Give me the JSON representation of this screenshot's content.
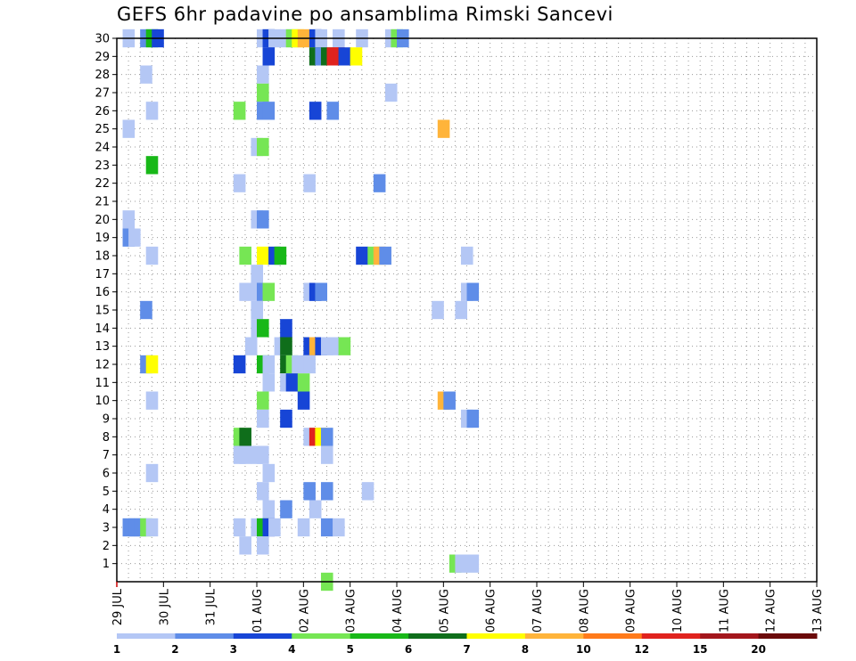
{
  "chart_data": {
    "type": "heatmap",
    "title": "GEFS 6hr padavine po ansamblima Rimski Sancevi",
    "xlabel": "",
    "ylabel": "",
    "x_tick_labels": [
      "29 JUL",
      "30 JUL",
      "31 JUL",
      "01 AUG",
      "02 AUG",
      "03 AUG",
      "04 AUG",
      "05 AUG",
      "06 AUG",
      "07 AUG",
      "08 AUG",
      "09 AUG",
      "10 AUG",
      "11 AUG",
      "12 AUG",
      "13 AUG"
    ],
    "y_tick_labels": [
      "1",
      "2",
      "3",
      "4",
      "5",
      "6",
      "7",
      "8",
      "9",
      "10",
      "11",
      "12",
      "13",
      "14",
      "15",
      "16",
      "17",
      "18",
      "19",
      "20",
      "21",
      "22",
      "23",
      "24",
      "25",
      "26",
      "27",
      "28",
      "29",
      "30"
    ],
    "x_range_steps": [
      0,
      60
    ],
    "y_range": [
      0,
      30
    ],
    "grid": true,
    "colorbar_levels": [
      "1",
      "2",
      "3",
      "4",
      "5",
      "6",
      "7",
      "8",
      "10",
      "12",
      "15",
      "20"
    ],
    "colorbar_colors": [
      "#b4c7f5",
      "#5f8de8",
      "#1745d6",
      "#76e654",
      "#18b818",
      "#0f6e1b",
      "#ffff00",
      "#ffb43a",
      "#ff7a1a",
      "#e0231e",
      "#a3161c",
      "#6b0a0a"
    ],
    "cells": [
      [
        30,
        0.5,
        0
      ],
      [
        30,
        2,
        1
      ],
      [
        30,
        2.5,
        4
      ],
      [
        30,
        3,
        2
      ],
      [
        30,
        12,
        0
      ],
      [
        30,
        12.5,
        2
      ],
      [
        30,
        13,
        0
      ],
      [
        30,
        14,
        0
      ],
      [
        30,
        14.5,
        3
      ],
      [
        30,
        15,
        6
      ],
      [
        30,
        15.5,
        7
      ],
      [
        30,
        16.5,
        2
      ],
      [
        30,
        17,
        0
      ],
      [
        30,
        18.5,
        0
      ],
      [
        30,
        20.5,
        0
      ],
      [
        30,
        23,
        0
      ],
      [
        30,
        23.5,
        3
      ],
      [
        30,
        24,
        1
      ],
      [
        29,
        12.5,
        2
      ],
      [
        29,
        16.5,
        5
      ],
      [
        29,
        17,
        1
      ],
      [
        29,
        17.5,
        5
      ],
      [
        29,
        18,
        9
      ],
      [
        29,
        18.5,
        9
      ],
      [
        29,
        19,
        2
      ],
      [
        29,
        20,
        6
      ],
      [
        28,
        2,
        0
      ],
      [
        28,
        12,
        0
      ],
      [
        27,
        12,
        3
      ],
      [
        27,
        23,
        0
      ],
      [
        26,
        2.5,
        0
      ],
      [
        26,
        10,
        3
      ],
      [
        26,
        12,
        1
      ],
      [
        26,
        12.5,
        1
      ],
      [
        26,
        16.5,
        2
      ],
      [
        26,
        18,
        1
      ],
      [
        25,
        0.5,
        0
      ],
      [
        25,
        27.5,
        7
      ],
      [
        24,
        11.5,
        0
      ],
      [
        24,
        12,
        3
      ],
      [
        23,
        2.5,
        4
      ],
      [
        22,
        10,
        0
      ],
      [
        22,
        16,
        0
      ],
      [
        22,
        22,
        1
      ],
      [
        20,
        0.5,
        0
      ],
      [
        20,
        11.5,
        0
      ],
      [
        20,
        12,
        1
      ],
      [
        19,
        0.5,
        1
      ],
      [
        19,
        1,
        0
      ],
      [
        18,
        2.5,
        0
      ],
      [
        18,
        10.5,
        3
      ],
      [
        18,
        12,
        6
      ],
      [
        18,
        13,
        2
      ],
      [
        18,
        13.5,
        4
      ],
      [
        18,
        20.5,
        2
      ],
      [
        18,
        21.5,
        3
      ],
      [
        18,
        22,
        7
      ],
      [
        18,
        22.5,
        1
      ],
      [
        18,
        29.5,
        0
      ],
      [
        17,
        11.5,
        0
      ],
      [
        16,
        10.5,
        0
      ],
      [
        16,
        11.5,
        0
      ],
      [
        16,
        12,
        1
      ],
      [
        16,
        12.5,
        3
      ],
      [
        16,
        16,
        0
      ],
      [
        16,
        16.5,
        2
      ],
      [
        16,
        17,
        1
      ],
      [
        16,
        29.5,
        0
      ],
      [
        16,
        30,
        1
      ],
      [
        15,
        2,
        1
      ],
      [
        15,
        11.5,
        0
      ],
      [
        15,
        27,
        0
      ],
      [
        15,
        29,
        0
      ],
      [
        14,
        11.5,
        0
      ],
      [
        14,
        12,
        4
      ],
      [
        14,
        14,
        2
      ],
      [
        13,
        11,
        0
      ],
      [
        13,
        13.5,
        0
      ],
      [
        13,
        14,
        5
      ],
      [
        13,
        16,
        2
      ],
      [
        13,
        16.5,
        7
      ],
      [
        13,
        17,
        2
      ],
      [
        13,
        17.5,
        0
      ],
      [
        13,
        18,
        0
      ],
      [
        13,
        19,
        3
      ],
      [
        12,
        2,
        1
      ],
      [
        12,
        2.5,
        6
      ],
      [
        12,
        10,
        2
      ],
      [
        12,
        12,
        4
      ],
      [
        12,
        12.5,
        0
      ],
      [
        12,
        14,
        5
      ],
      [
        12,
        14.5,
        3
      ],
      [
        12,
        15,
        0
      ],
      [
        12,
        16,
        0
      ],
      [
        11,
        12.5,
        0
      ],
      [
        11,
        14,
        0
      ],
      [
        11,
        14.5,
        2
      ],
      [
        11,
        15.5,
        3
      ],
      [
        10,
        2.5,
        0
      ],
      [
        10,
        12,
        3
      ],
      [
        10,
        15.5,
        2
      ],
      [
        10,
        27.5,
        7
      ],
      [
        10,
        28,
        1
      ],
      [
        9,
        12,
        0
      ],
      [
        9,
        14,
        2
      ],
      [
        9,
        29.5,
        0
      ],
      [
        9,
        30,
        1
      ],
      [
        8,
        10,
        3
      ],
      [
        8,
        10.5,
        5
      ],
      [
        8,
        16,
        0
      ],
      [
        8,
        16.5,
        9
      ],
      [
        8,
        17,
        6
      ],
      [
        8,
        17.5,
        1
      ],
      [
        7,
        10,
        0
      ],
      [
        7,
        10.5,
        0
      ],
      [
        7,
        11.5,
        0
      ],
      [
        7,
        12,
        0
      ],
      [
        7,
        17.5,
        0
      ],
      [
        6,
        2.5,
        0
      ],
      [
        6,
        12.5,
        0
      ],
      [
        5,
        12,
        0
      ],
      [
        5,
        16,
        1
      ],
      [
        5,
        17.5,
        1
      ],
      [
        5,
        21,
        0
      ],
      [
        4,
        12.5,
        0
      ],
      [
        4,
        14,
        1
      ],
      [
        4,
        16.5,
        0
      ],
      [
        3,
        0.5,
        1
      ],
      [
        3,
        1,
        1
      ],
      [
        3,
        1.5,
        1
      ],
      [
        3,
        2,
        3
      ],
      [
        3,
        2.5,
        0
      ],
      [
        3,
        10,
        0
      ],
      [
        3,
        11.5,
        0
      ],
      [
        3,
        12,
        4
      ],
      [
        3,
        12.5,
        2
      ],
      [
        3,
        13,
        0
      ],
      [
        3,
        15.5,
        0
      ],
      [
        3,
        17.5,
        1
      ],
      [
        3,
        18.5,
        0
      ],
      [
        2,
        10.5,
        0
      ],
      [
        2,
        12,
        0
      ],
      [
        1,
        28.5,
        3
      ],
      [
        1,
        29,
        0
      ],
      [
        1,
        30,
        0
      ],
      [
        0,
        17.5,
        3
      ]
    ]
  }
}
